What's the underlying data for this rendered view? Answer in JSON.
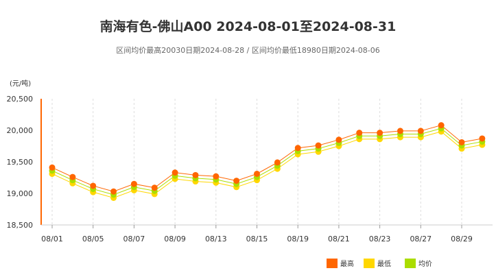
{
  "title": "南海有色-佛山A00 2024-08-01至2024-08-31",
  "subtitle": "区间均价最高20030日期2024-08-28 / 区间均价最低18980日期2024-08-06",
  "chart_data": {
    "type": "line",
    "ylabel": "(元/吨)",
    "ylim": [
      18500,
      20500
    ],
    "yticks": [
      "18,500",
      "19,000",
      "19,500",
      "20,000",
      "20,500"
    ],
    "ytick_values": [
      18500,
      19000,
      19500,
      20000,
      20500
    ],
    "x": [
      "08/01",
      "08/02",
      "08/05",
      "08/06",
      "08/07",
      "08/08",
      "08/09",
      "08/12",
      "08/13",
      "08/14",
      "08/15",
      "08/16",
      "08/19",
      "08/20",
      "08/21",
      "08/22",
      "08/23",
      "08/26",
      "08/27",
      "08/28",
      "08/29",
      "08/30"
    ],
    "xtick_labels": [
      "08/01",
      "08/05",
      "08/07",
      "08/09",
      "08/13",
      "08/15",
      "08/19",
      "08/21",
      "08/23",
      "08/27",
      "08/29"
    ],
    "legend_position": "bottom-right",
    "grid": "vertical dashed",
    "series": [
      {
        "name": "最高",
        "color": "#ff6600",
        "values": [
          19410,
          19260,
          19120,
          19030,
          19150,
          19090,
          19330,
          19290,
          19270,
          19200,
          19310,
          19490,
          19720,
          19760,
          19850,
          19960,
          19960,
          19990,
          19990,
          20080,
          19810,
          19870
        ]
      },
      {
        "name": "最低",
        "color": "#ffd700",
        "values": [
          19310,
          19160,
          19020,
          18930,
          19050,
          18990,
          19230,
          19190,
          19170,
          19100,
          19210,
          19390,
          19620,
          19660,
          19750,
          19860,
          19860,
          19890,
          19890,
          19980,
          19710,
          19770
        ]
      },
      {
        "name": "均价",
        "color": "#aadd00",
        "values": [
          19360,
          19210,
          19070,
          18980,
          19100,
          19040,
          19280,
          19240,
          19220,
          19150,
          19260,
          19440,
          19670,
          19710,
          19800,
          19910,
          19910,
          19940,
          19940,
          20030,
          19760,
          19820
        ]
      }
    ]
  }
}
